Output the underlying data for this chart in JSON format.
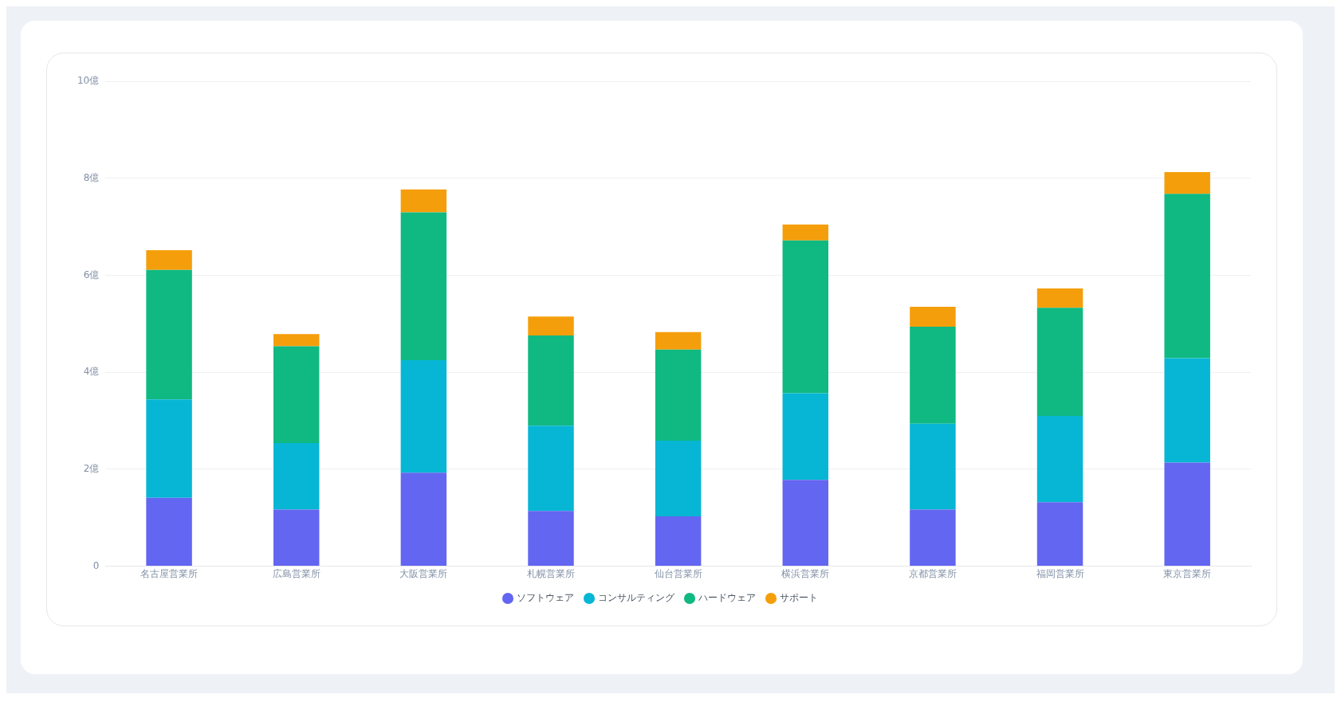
{
  "chart_data": {
    "type": "bar",
    "stacked": true,
    "categories": [
      "名古屋営業所",
      "広島営業所",
      "大阪営業所",
      "札幌営業所",
      "仙台営業所",
      "横浜営業所",
      "京都営業所",
      "福岡営業所",
      "東京営業所"
    ],
    "series": [
      {
        "name": "ソフトウェア",
        "color": "#6366f1",
        "values": [
          1.41,
          1.17,
          1.93,
          1.14,
          1.03,
          1.78,
          1.17,
          1.32,
          2.14
        ]
      },
      {
        "name": "コンサルティング",
        "color": "#06b6d4",
        "values": [
          2.03,
          1.37,
          2.32,
          1.76,
          1.56,
          1.79,
          1.77,
          1.78,
          2.15
        ]
      },
      {
        "name": "ハードウェア",
        "color": "#10b981",
        "values": [
          2.67,
          2.0,
          3.05,
          1.86,
          1.88,
          3.15,
          2.0,
          2.23,
          3.39
        ]
      },
      {
        "name": "サポート",
        "color": "#f59e0b",
        "values": [
          0.41,
          0.25,
          0.47,
          0.39,
          0.36,
          0.33,
          0.41,
          0.4,
          0.45
        ]
      }
    ],
    "ylim": [
      0,
      10
    ],
    "yticks": [
      0,
      {
        "value": 2,
        "label": "2億"
      },
      {
        "value": 4,
        "label": "4億"
      },
      {
        "value": 6,
        "label": "6億"
      },
      {
        "value": 8,
        "label": "8億"
      },
      {
        "value": 10,
        "label": "10億"
      }
    ],
    "grid": "y",
    "legend": "bottom"
  }
}
